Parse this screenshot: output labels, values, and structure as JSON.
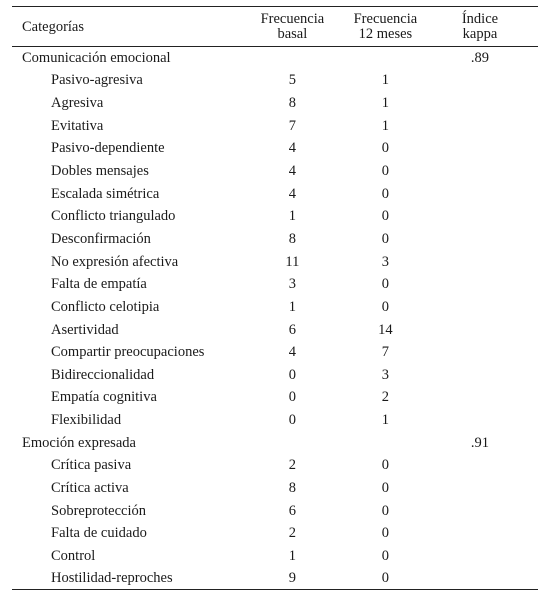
{
  "header": {
    "category": "Categorías",
    "basal": [
      "Frecuencia",
      "basal"
    ],
    "twelve": [
      "Frecuencia",
      "12 meses"
    ],
    "kappa": [
      "Índice",
      "kappa"
    ]
  },
  "groups": [
    {
      "name": "Comunicación emocional",
      "kappa": ".89",
      "rows": [
        {
          "label": "Pasivo-agresiva",
          "basal": "5",
          "twelve": "1"
        },
        {
          "label": "Agresiva",
          "basal": "8",
          "twelve": "1"
        },
        {
          "label": "Evitativa",
          "basal": "7",
          "twelve": "1"
        },
        {
          "label": "Pasivo-dependiente",
          "basal": "4",
          "twelve": "0"
        },
        {
          "label": "Dobles mensajes",
          "basal": "4",
          "twelve": "0"
        },
        {
          "label": "Escalada simétrica",
          "basal": "4",
          "twelve": "0"
        },
        {
          "label": "Conflicto triangulado",
          "basal": "1",
          "twelve": "0"
        },
        {
          "label": "Desconfirmación",
          "basal": "8",
          "twelve": "0"
        },
        {
          "label": "No expresión afectiva",
          "basal": "11",
          "twelve": "3"
        },
        {
          "label": "Falta de empatía",
          "basal": "3",
          "twelve": "0"
        },
        {
          "label": "Conflicto celotipia",
          "basal": "1",
          "twelve": "0"
        },
        {
          "label": "Asertividad",
          "basal": "6",
          "twelve": "14"
        },
        {
          "label": "Compartir preocupaciones",
          "basal": "4",
          "twelve": "7"
        },
        {
          "label": "Bidireccionalidad",
          "basal": "0",
          "twelve": "3"
        },
        {
          "label": "Empatía cognitiva",
          "basal": "0",
          "twelve": "2"
        },
        {
          "label": "Flexibilidad",
          "basal": "0",
          "twelve": "1"
        }
      ]
    },
    {
      "name": "Emoción expresada",
      "kappa": ".91",
      "rows": [
        {
          "label": "Crítica pasiva",
          "basal": "2",
          "twelve": "0"
        },
        {
          "label": "Crítica activa",
          "basal": "8",
          "twelve": "0"
        },
        {
          "label": "Sobreprotección",
          "basal": "6",
          "twelve": "0"
        },
        {
          "label": "Falta de cuidado",
          "basal": "2",
          "twelve": "0"
        },
        {
          "label": "Control",
          "basal": "1",
          "twelve": "0"
        },
        {
          "label": "Hostilidad-reproches",
          "basal": "9",
          "twelve": "0"
        }
      ]
    }
  ]
}
